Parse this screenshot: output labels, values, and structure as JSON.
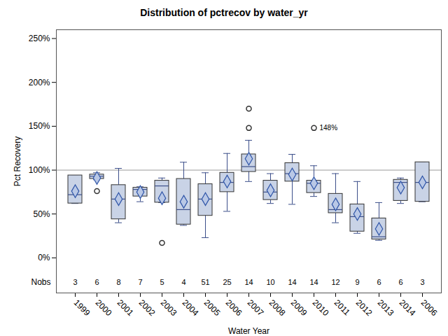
{
  "chart_data": {
    "type": "box",
    "title": "Distribution of pctrecov by water_yr",
    "x_label": "Water Year",
    "y_label": "Pct Recovery",
    "categories": [
      "1999",
      "2000",
      "2001",
      "2002",
      "2003",
      "2004",
      "2005",
      "2006",
      "2007",
      "2008",
      "2009",
      "2010",
      "2011",
      "2012",
      "2013",
      "2014",
      "2006"
    ],
    "min": [
      62,
      89,
      40,
      64,
      63,
      37,
      23,
      53,
      87,
      62,
      61,
      70,
      40,
      28,
      20,
      62,
      64
    ],
    "q1": [
      62,
      90,
      44,
      70,
      63,
      38,
      48,
      75,
      98,
      66,
      87,
      74,
      51,
      30,
      21,
      65,
      64
    ],
    "median": [
      72,
      93,
      67,
      78,
      82,
      55,
      67,
      86,
      104,
      75,
      96,
      85,
      55,
      47,
      24,
      86,
      86
    ],
    "q3": [
      94,
      95,
      83,
      80,
      88,
      90,
      84,
      97,
      118,
      88,
      108,
      88,
      73,
      61,
      45,
      89,
      109
    ],
    "max": [
      94,
      97,
      102,
      81,
      91,
      109,
      97,
      119,
      134,
      96,
      118,
      105,
      96,
      87,
      63,
      91,
      109
    ],
    "mean": [
      76,
      91,
      67,
      75,
      68,
      64,
      67,
      87,
      113,
      77,
      95,
      85,
      61,
      50,
      33,
      80,
      86
    ],
    "outliers": [
      [],
      [
        76
      ],
      [],
      [],
      [
        17
      ],
      [],
      [],
      [],
      [
        148,
        170
      ],
      [],
      [],
      [
        148
      ],
      [],
      [],
      [],
      [],
      []
    ],
    "nobs_label": "Nobs",
    "nobs": [
      3,
      6,
      8,
      7,
      5,
      4,
      51,
      25,
      14,
      10,
      14,
      14,
      12,
      9,
      6,
      6,
      3
    ],
    "annotations": [
      {
        "index": 11,
        "value": 148,
        "text": "148%"
      }
    ],
    "reference_line": 100,
    "ylim": [
      -40,
      260
    ],
    "yticks": [
      {
        "value": 0,
        "label": "0%"
      },
      {
        "value": 50,
        "label": "50%"
      },
      {
        "value": 100,
        "label": "100%"
      },
      {
        "value": 150,
        "label": "150%"
      },
      {
        "value": 200,
        "label": "200%"
      },
      {
        "value": 250,
        "label": "250%"
      }
    ],
    "grid": false
  }
}
